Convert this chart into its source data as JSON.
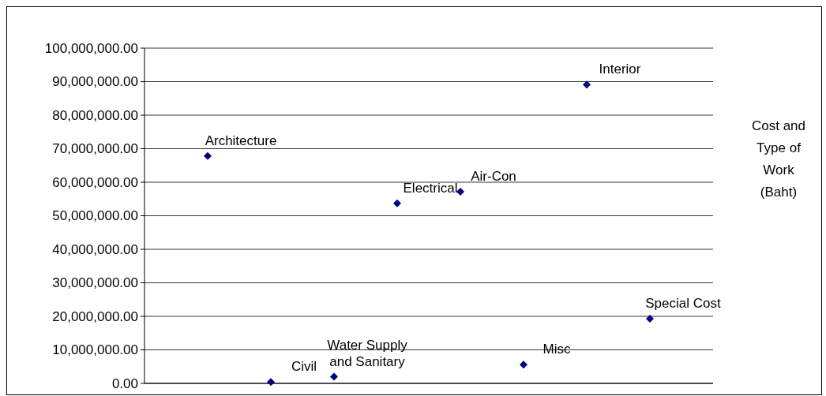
{
  "chart_data": {
    "type": "scatter",
    "categories": [
      null,
      null,
      null,
      null,
      null,
      null,
      null,
      null
    ],
    "series": [
      {
        "color": "#000080",
        "values": [
          67800000,
          400000,
          2000000,
          53700000,
          57200000,
          5600000,
          89100000,
          19300000
        ],
        "value_labels": [
          "Architecture",
          "Civil",
          "Water Supply and Sanitary",
          "Electrical",
          "Air-Con",
          "Misc",
          "Interior",
          "Special Cost"
        ]
      }
    ],
    "ylim": [
      0,
      100000000
    ],
    "yticks": [
      {
        "value": 0,
        "label": "0.00"
      },
      {
        "value": 10000000,
        "label": "10,000,000.00"
      },
      {
        "value": 20000000,
        "label": "20,000,000.00"
      },
      {
        "value": 30000000,
        "label": "30,000,000.00"
      },
      {
        "value": 40000000,
        "label": "40,000,000.00"
      },
      {
        "value": 50000000,
        "label": "50,000,000.00"
      },
      {
        "value": 60000000,
        "label": "60,000,000.00"
      },
      {
        "value": 70000000,
        "label": "70,000,000.00"
      },
      {
        "value": 80000000,
        "label": "80,000,000.00"
      },
      {
        "value": 90000000,
        "label": "90,000,000.00"
      },
      {
        "value": 100000000,
        "label": "100,000,000.00"
      }
    ],
    "grid": "y",
    "marker": "diamond",
    "tick_labels": "y",
    "annotations": [
      "Cost and Type of Work (Baht)"
    ]
  }
}
